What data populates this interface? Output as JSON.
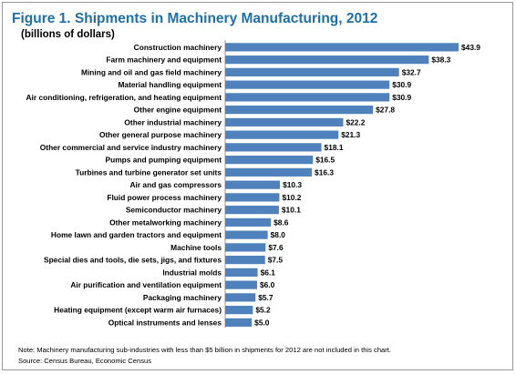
{
  "figure": {
    "title": "Figure 1. Shipments in Machinery Manufacturing, 2012",
    "subtitle": "(billions of dollars)",
    "note": "Note: Machinery manufacturing sub-industries with less than $5 billion in shipments  for 2012 are not included in this chart.",
    "source": "Source: Census Bureau, Economic Census"
  },
  "chart_data": {
    "type": "bar",
    "orientation": "horizontal",
    "title": "Figure 1. Shipments in Machinery Manufacturing, 2012",
    "subtitle": "(billions of dollars)",
    "categories": [
      "Construction machinery",
      "Farm machinery and equipment",
      "Mining and oil and gas field machinery",
      "Material handling equipment",
      "Air conditioning, refrigeration, and heating equipment",
      "Other engine equipment",
      "Other industrial machinery",
      "Other general purpose machinery",
      "Other commercial and service industry machinery",
      "Pumps and pumping equipment",
      "Turbines and turbine generator set units",
      "Air and gas compressors",
      "Fluid power process machinery",
      "Semiconductor machinery",
      "Other metalworking machinery",
      "Home lawn and garden tractors and equipment",
      "Machine tools",
      "Special dies and tools, die sets, jigs, and fixtures",
      "Industrial molds",
      "Air purification and ventilation equipment",
      "Packaging machinery",
      "Heating equipment (except warm air furnaces)",
      "Optical instruments and lenses"
    ],
    "values": [
      43.9,
      38.3,
      32.7,
      30.9,
      30.9,
      27.8,
      22.2,
      21.3,
      18.1,
      16.5,
      16.3,
      10.3,
      10.2,
      10.1,
      8.6,
      8.0,
      7.6,
      7.5,
      6.1,
      6.0,
      5.7,
      5.2,
      5.0
    ],
    "data_labels": [
      "$43.9",
      "$38.3",
      "$32.7",
      "$30.9",
      "$30.9",
      "$27.8",
      "$22.2",
      "$21.3",
      "$18.1",
      "$16.5",
      "$16.3",
      "$10.3",
      "$10.2",
      "$10.1",
      "$8.6",
      "$8.0",
      "$7.6",
      "$7.5",
      "$6.1",
      "$6.0",
      "$5.7",
      "$5.2",
      "$5.0"
    ],
    "xlim": [
      0,
      43.9
    ],
    "grid": false,
    "legend": "none",
    "bar_color": "#4f81bd"
  }
}
